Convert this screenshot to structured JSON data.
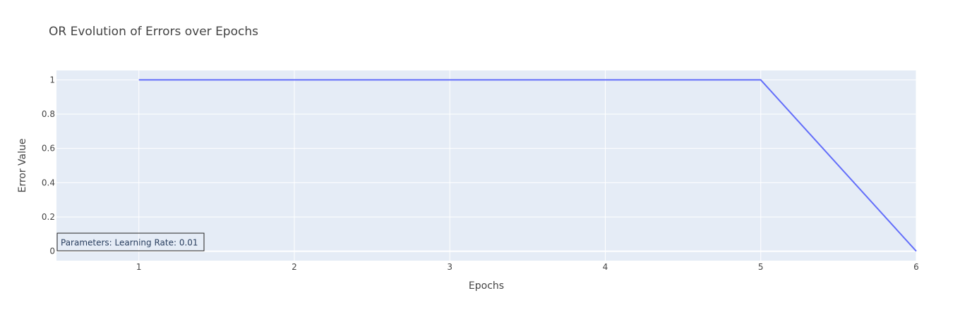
{
  "chart_data": {
    "type": "line",
    "title": "OR Evolution of Errors over Epochs",
    "xlabel": "Epochs",
    "ylabel": "Error Value",
    "x": [
      1,
      2,
      3,
      4,
      5,
      6
    ],
    "series": [
      {
        "values": [
          1,
          1,
          1,
          1,
          1,
          0
        ]
      }
    ],
    "xlim": [
      0.47,
      6
    ],
    "ylim": [
      -0.055,
      1.055
    ],
    "xticks": [
      "1",
      "2",
      "3",
      "4",
      "5",
      "6"
    ],
    "yticks": [
      "0",
      "0.2",
      "0.4",
      "0.6",
      "0.8",
      "1"
    ],
    "annotation": "Parameters: Learning Rate: 0.01",
    "annotation_placement": "bottom-left",
    "grid": true,
    "colors": {
      "plot_background": "#e5ecf6",
      "grid": "#ffffff",
      "line": "#636efa",
      "text": "#444444"
    }
  }
}
